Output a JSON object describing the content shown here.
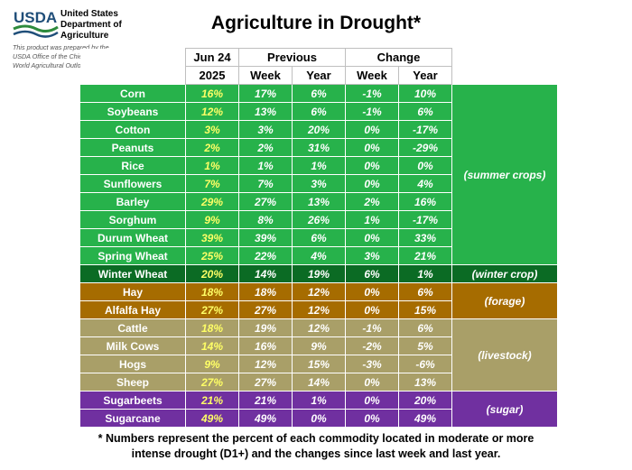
{
  "logo": {
    "text": "USDA",
    "dept_lines": [
      "United States",
      "Department of",
      "Agriculture"
    ]
  },
  "disclaimer": [
    "This product was prepared by the",
    "USDA Office of the Chief Economist (OCE)",
    "World Agricultural Outlook Board (WAOB)."
  ],
  "title": "Agriculture in Drought*",
  "headers": {
    "current_top": "Jun 24",
    "current_bottom": "2025",
    "previous": "Previous",
    "change": "Change",
    "week": "Week",
    "year": "Year"
  },
  "groups": {
    "summer": "(summer crops)",
    "winter": "(winter crop)",
    "forage": "(forage)",
    "livestock": "(livestock)",
    "sugar": "(sugar)"
  },
  "rows": [
    {
      "name": "Corn",
      "current": "16%",
      "prev_week": "17%",
      "prev_year": "6%",
      "chg_week": "-1%",
      "chg_year": "10%"
    },
    {
      "name": "Soybeans",
      "current": "12%",
      "prev_week": "13%",
      "prev_year": "6%",
      "chg_week": "-1%",
      "chg_year": "6%"
    },
    {
      "name": "Cotton",
      "current": "3%",
      "prev_week": "3%",
      "prev_year": "20%",
      "chg_week": "0%",
      "chg_year": "-17%"
    },
    {
      "name": "Peanuts",
      "current": "2%",
      "prev_week": "2%",
      "prev_year": "31%",
      "chg_week": "0%",
      "chg_year": "-29%"
    },
    {
      "name": "Rice",
      "current": "1%",
      "prev_week": "1%",
      "prev_year": "1%",
      "chg_week": "0%",
      "chg_year": "0%"
    },
    {
      "name": "Sunflowers",
      "current": "7%",
      "prev_week": "7%",
      "prev_year": "3%",
      "chg_week": "0%",
      "chg_year": "4%"
    },
    {
      "name": "Barley",
      "current": "29%",
      "prev_week": "27%",
      "prev_year": "13%",
      "chg_week": "2%",
      "chg_year": "16%"
    },
    {
      "name": "Sorghum",
      "current": "9%",
      "prev_week": "8%",
      "prev_year": "26%",
      "chg_week": "1%",
      "chg_year": "-17%"
    },
    {
      "name": "Durum Wheat",
      "current": "39%",
      "prev_week": "39%",
      "prev_year": "6%",
      "chg_week": "0%",
      "chg_year": "33%"
    },
    {
      "name": "Spring Wheat",
      "current": "25%",
      "prev_week": "22%",
      "prev_year": "4%",
      "chg_week": "3%",
      "chg_year": "21%"
    },
    {
      "name": "Winter Wheat",
      "current": "20%",
      "prev_week": "14%",
      "prev_year": "19%",
      "chg_week": "6%",
      "chg_year": "1%"
    },
    {
      "name": "Hay",
      "current": "18%",
      "prev_week": "18%",
      "prev_year": "12%",
      "chg_week": "0%",
      "chg_year": "6%"
    },
    {
      "name": "Alfalfa Hay",
      "current": "27%",
      "prev_week": "27%",
      "prev_year": "12%",
      "chg_week": "0%",
      "chg_year": "15%"
    },
    {
      "name": "Cattle",
      "current": "18%",
      "prev_week": "19%",
      "prev_year": "12%",
      "chg_week": "-1%",
      "chg_year": "6%"
    },
    {
      "name": "Milk Cows",
      "current": "14%",
      "prev_week": "16%",
      "prev_year": "9%",
      "chg_week": "-2%",
      "chg_year": "5%"
    },
    {
      "name": "Hogs",
      "current": "9%",
      "prev_week": "12%",
      "prev_year": "15%",
      "chg_week": "-3%",
      "chg_year": "-6%"
    },
    {
      "name": "Sheep",
      "current": "27%",
      "prev_week": "27%",
      "prev_year": "14%",
      "chg_week": "0%",
      "chg_year": "13%"
    },
    {
      "name": "Sugarbeets",
      "current": "21%",
      "prev_week": "21%",
      "prev_year": "1%",
      "chg_week": "0%",
      "chg_year": "20%"
    },
    {
      "name": "Sugarcane",
      "current": "49%",
      "prev_week": "49%",
      "prev_year": "0%",
      "chg_week": "0%",
      "chg_year": "49%"
    }
  ],
  "footnote": [
    "* Numbers represent the percent of each commodity located in moderate or more",
    "intense drought (D1+) and the changes since last week and last year."
  ],
  "colors": {
    "summer": "#27b24b",
    "winter": "#0b6b24",
    "forage": "#a66c00",
    "livestock": "#a99f68",
    "sugar": "#7030a0",
    "current_text": "#ffff66",
    "usda_blue": "#1f4e79",
    "usda_green": "#2e8b3d"
  }
}
